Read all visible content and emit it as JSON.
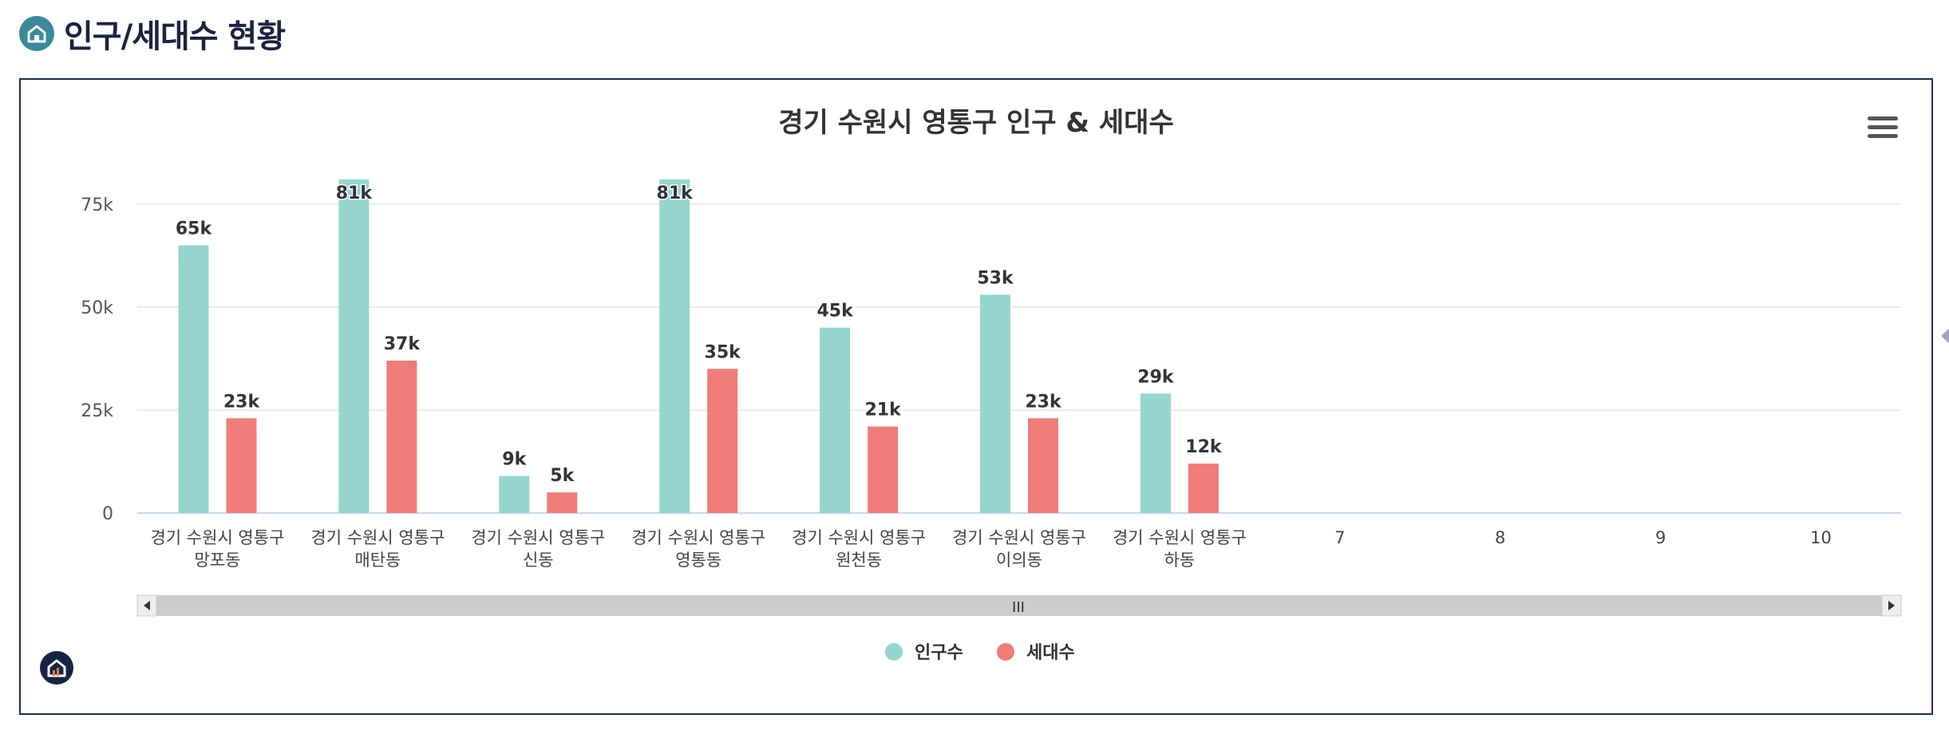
{
  "header": {
    "title": "인구/세대수 현황",
    "icon": "home-icon"
  },
  "chart_menu": {
    "icon": "hamburger-menu-icon"
  },
  "footer": {
    "icon": "home-logo-icon"
  },
  "colors": {
    "population": "#94d6ce",
    "households": "#f07c78",
    "grid": "#e6e6e6",
    "axis": "#ccd6eb",
    "frame": "#1f2d55"
  },
  "chart_data": {
    "type": "bar",
    "title": "경기 수원시 영통구 인구 & 세대수",
    "categories": [
      [
        "경기 수원시 영통구",
        "망포동"
      ],
      [
        "경기 수원시 영통구",
        "매탄동"
      ],
      [
        "경기 수원시 영통구",
        "신동"
      ],
      [
        "경기 수원시 영통구",
        "영통동"
      ],
      [
        "경기 수원시 영통구",
        "원천동"
      ],
      [
        "경기 수원시 영통구",
        "이의동"
      ],
      [
        "경기 수원시 영통구",
        "하동"
      ],
      [
        "7"
      ],
      [
        "8"
      ],
      [
        "9"
      ],
      [
        "10"
      ]
    ],
    "series": [
      {
        "name": "인구수",
        "values": [
          65000,
          81000,
          9000,
          81000,
          45000,
          53000,
          29000,
          null,
          null,
          null,
          null
        ],
        "labels": [
          "65k",
          "81k",
          "9k",
          "81k",
          "45k",
          "53k",
          "29k",
          "",
          "",
          "",
          ""
        ]
      },
      {
        "name": "세대수",
        "values": [
          23000,
          37000,
          5000,
          35000,
          21000,
          23000,
          12000,
          null,
          null,
          null,
          null
        ],
        "labels": [
          "23k",
          "37k",
          "5k",
          "35k",
          "21k",
          "23k",
          "12k",
          "",
          "",
          "",
          ""
        ]
      }
    ],
    "yticks": [
      {
        "value": 0,
        "label": "0"
      },
      {
        "value": 25000,
        "label": "25k"
      },
      {
        "value": 50000,
        "label": "50k"
      },
      {
        "value": 75000,
        "label": "75k"
      }
    ],
    "ylim": [
      0,
      80000
    ],
    "grid": true,
    "legend_position": "bottom-center",
    "scrollbar": {
      "grip": "III"
    }
  }
}
